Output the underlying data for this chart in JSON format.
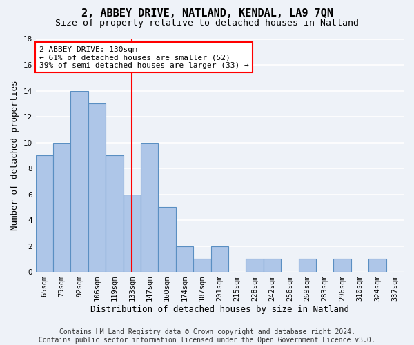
{
  "title": "2, ABBEY DRIVE, NATLAND, KENDAL, LA9 7QN",
  "subtitle": "Size of property relative to detached houses in Natland",
  "xlabel": "Distribution of detached houses by size in Natland",
  "ylabel": "Number of detached properties",
  "categories": [
    "65sqm",
    "79sqm",
    "92sqm",
    "106sqm",
    "119sqm",
    "133sqm",
    "147sqm",
    "160sqm",
    "174sqm",
    "187sqm",
    "201sqm",
    "215sqm",
    "228sqm",
    "242sqm",
    "256sqm",
    "269sqm",
    "283sqm",
    "296sqm",
    "310sqm",
    "324sqm",
    "337sqm"
  ],
  "values": [
    9,
    10,
    14,
    13,
    9,
    6,
    10,
    5,
    2,
    1,
    2,
    0,
    1,
    1,
    0,
    1,
    0,
    1,
    0,
    1,
    0
  ],
  "bar_color": "#aec6e8",
  "bar_edge_color": "#5a8fc2",
  "vline_x": 5,
  "vline_color": "red",
  "ylim": [
    0,
    18
  ],
  "yticks": [
    0,
    2,
    4,
    6,
    8,
    10,
    12,
    14,
    16,
    18
  ],
  "annotation_text": "2 ABBEY DRIVE: 130sqm\n← 61% of detached houses are smaller (52)\n39% of semi-detached houses are larger (33) →",
  "annotation_box_color": "white",
  "annotation_box_edge": "red",
  "footer_line1": "Contains HM Land Registry data © Crown copyright and database right 2024.",
  "footer_line2": "Contains public sector information licensed under the Open Government Licence v3.0.",
  "background_color": "#eef2f8",
  "plot_bg_color": "#eef2f8",
  "grid_color": "white",
  "title_fontsize": 11,
  "subtitle_fontsize": 9.5,
  "axis_label_fontsize": 9,
  "tick_fontsize": 7.5,
  "annotation_fontsize": 8,
  "footer_fontsize": 7
}
